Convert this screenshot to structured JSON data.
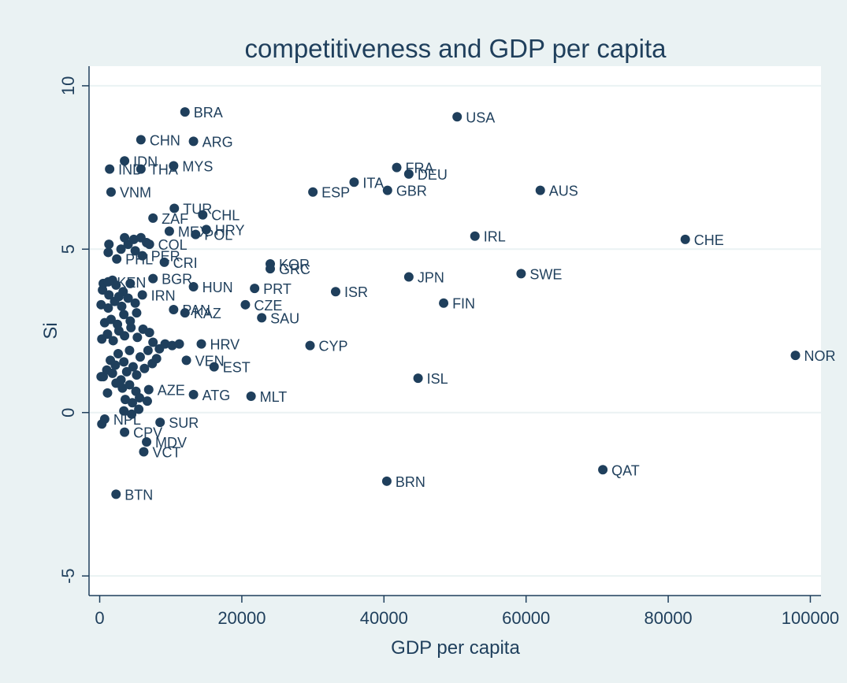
{
  "colors": {
    "background": "#eaf2f3",
    "plot_bg": "#ffffff",
    "marker": "#1f3f5c",
    "text": "#1f3f5c",
    "grid": "#eaf2f3"
  },
  "chart_data": {
    "type": "scatter",
    "title": "competitiveness and GDP per capita",
    "xlabel": "GDP per capita",
    "ylabel": "Si",
    "xlim": [
      -1500,
      101500
    ],
    "ylim": [
      -5.6,
      10.6
    ],
    "xticks": [
      0,
      20000,
      40000,
      60000,
      80000,
      100000
    ],
    "yticks": [
      -5,
      0,
      5,
      10
    ],
    "grid": "horizontal",
    "legend": "none",
    "labeled_points": [
      {
        "label": "BRA",
        "x": 12000,
        "y": 9.2
      },
      {
        "label": "USA",
        "x": 50300,
        "y": 9.05
      },
      {
        "label": "CHN",
        "x": 5800,
        "y": 8.35
      },
      {
        "label": "ARG",
        "x": 13200,
        "y": 8.3
      },
      {
        "label": "IDN",
        "x": 3500,
        "y": 7.7
      },
      {
        "label": "IND",
        "x": 1400,
        "y": 7.45
      },
      {
        "label": "THA",
        "x": 5800,
        "y": 7.45
      },
      {
        "label": "MYS",
        "x": 10400,
        "y": 7.55
      },
      {
        "label": "FRA",
        "x": 41800,
        "y": 7.5
      },
      {
        "label": "DEU",
        "x": 43500,
        "y": 7.3
      },
      {
        "label": "ITA",
        "x": 35800,
        "y": 7.05
      },
      {
        "label": "ESP",
        "x": 30000,
        "y": 6.75
      },
      {
        "label": "GBR",
        "x": 40500,
        "y": 6.8
      },
      {
        "label": "AUS",
        "x": 62000,
        "y": 6.8
      },
      {
        "label": "VNM",
        "x": 1600,
        "y": 6.75
      },
      {
        "label": "TUR",
        "x": 10500,
        "y": 6.25
      },
      {
        "label": "CHL",
        "x": 14500,
        "y": 6.05
      },
      {
        "label": "ZAF",
        "x": 7500,
        "y": 5.95
      },
      {
        "label": "MEX",
        "x": 9800,
        "y": 5.55
      },
      {
        "label": "HRY",
        "x": 15000,
        "y": 5.6
      },
      {
        "label": "POL",
        "x": 13500,
        "y": 5.45
      },
      {
        "label": "IRL",
        "x": 52800,
        "y": 5.4
      },
      {
        "label": "CHE",
        "x": 82400,
        "y": 5.3
      },
      {
        "label": "COL",
        "x": 7000,
        "y": 5.15
      },
      {
        "label": "PER",
        "x": 6000,
        "y": 4.8
      },
      {
        "label": "PHL",
        "x": 2400,
        "y": 4.7
      },
      {
        "label": "CRI",
        "x": 9100,
        "y": 4.6
      },
      {
        "label": "KOR",
        "x": 24000,
        "y": 4.55
      },
      {
        "label": "GRC",
        "x": 24000,
        "y": 4.4
      },
      {
        "label": "SWE",
        "x": 59300,
        "y": 4.25
      },
      {
        "label": "JPN",
        "x": 43500,
        "y": 4.15
      },
      {
        "label": "BGR",
        "x": 7500,
        "y": 4.1
      },
      {
        "label": "KEN",
        "x": 1200,
        "y": 4.0
      },
      {
        "label": "HUN",
        "x": 13200,
        "y": 3.85
      },
      {
        "label": "PRT",
        "x": 21800,
        "y": 3.8
      },
      {
        "label": "IRN",
        "x": 6000,
        "y": 3.6
      },
      {
        "label": "ISR",
        "x": 33200,
        "y": 3.7
      },
      {
        "label": "FIN",
        "x": 48400,
        "y": 3.35
      },
      {
        "label": "CZE",
        "x": 20500,
        "y": 3.3
      },
      {
        "label": "PAN",
        "x": 10400,
        "y": 3.15
      },
      {
        "label": "KAZ",
        "x": 12000,
        "y": 3.05
      },
      {
        "label": "SAU",
        "x": 22800,
        "y": 2.9
      },
      {
        "label": "HRV",
        "x": 14300,
        "y": 2.1
      },
      {
        "label": "CYP",
        "x": 29600,
        "y": 2.05
      },
      {
        "label": "NOR",
        "x": 97900,
        "y": 1.75
      },
      {
        "label": "VEN",
        "x": 12200,
        "y": 1.6
      },
      {
        "label": "EST",
        "x": 16100,
        "y": 1.4
      },
      {
        "label": "ISL",
        "x": 44800,
        "y": 1.05
      },
      {
        "label": "AZE",
        "x": 6900,
        "y": 0.7
      },
      {
        "label": "ATG",
        "x": 13200,
        "y": 0.55
      },
      {
        "label": "MLT",
        "x": 21300,
        "y": 0.5
      },
      {
        "label": "SUR",
        "x": 8500,
        "y": -0.3
      },
      {
        "label": "CPV",
        "x": 3500,
        "y": -0.6
      },
      {
        "label": "MDV",
        "x": 6600,
        "y": -0.9
      },
      {
        "label": "VCT",
        "x": 6200,
        "y": -1.2
      },
      {
        "label": "QAT",
        "x": 70800,
        "y": -1.75
      },
      {
        "label": "BRN",
        "x": 40400,
        "y": -2.1
      },
      {
        "label": "BTN",
        "x": 2300,
        "y": -2.5
      }
    ],
    "cluster_points": [
      {
        "label": "NPL",
        "x": 700,
        "y": -0.2
      },
      {
        "label": "",
        "x": 300,
        "y": -0.35
      },
      {
        "label": "",
        "x": 500,
        "y": 1.1
      },
      {
        "label": "",
        "x": 200,
        "y": 1.1
      },
      {
        "label": "",
        "x": 1000,
        "y": 1.3
      },
      {
        "label": "",
        "x": 1500,
        "y": 1.6
      },
      {
        "label": "",
        "x": 1800,
        "y": 1.2
      },
      {
        "label": "",
        "x": 2200,
        "y": 1.45
      },
      {
        "label": "",
        "x": 2600,
        "y": 1.8
      },
      {
        "label": "",
        "x": 3000,
        "y": 1.0
      },
      {
        "label": "",
        "x": 3400,
        "y": 1.55
      },
      {
        "label": "",
        "x": 3800,
        "y": 1.25
      },
      {
        "label": "",
        "x": 4200,
        "y": 1.9
      },
      {
        "label": "",
        "x": 4700,
        "y": 1.4
      },
      {
        "label": "",
        "x": 5200,
        "y": 1.15
      },
      {
        "label": "",
        "x": 5700,
        "y": 1.7
      },
      {
        "label": "",
        "x": 6300,
        "y": 1.35
      },
      {
        "label": "",
        "x": 6800,
        "y": 1.9
      },
      {
        "label": "",
        "x": 7400,
        "y": 1.5
      },
      {
        "label": "",
        "x": 8000,
        "y": 1.65
      },
      {
        "label": "",
        "x": 9200,
        "y": 2.1
      },
      {
        "label": "",
        "x": 10200,
        "y": 2.05
      },
      {
        "label": "",
        "x": 11200,
        "y": 2.1
      },
      {
        "label": "",
        "x": 300,
        "y": 2.25
      },
      {
        "label": "",
        "x": 1100,
        "y": 2.4
      },
      {
        "label": "",
        "x": 1900,
        "y": 2.2
      },
      {
        "label": "",
        "x": 2700,
        "y": 2.5
      },
      {
        "label": "",
        "x": 3500,
        "y": 2.35
      },
      {
        "label": "",
        "x": 4400,
        "y": 2.6
      },
      {
        "label": "",
        "x": 5300,
        "y": 2.3
      },
      {
        "label": "",
        "x": 6100,
        "y": 2.55
      },
      {
        "label": "",
        "x": 7000,
        "y": 2.45
      },
      {
        "label": "",
        "x": 700,
        "y": 2.75
      },
      {
        "label": "",
        "x": 1600,
        "y": 2.85
      },
      {
        "label": "",
        "x": 2500,
        "y": 2.7
      },
      {
        "label": "",
        "x": 3400,
        "y": 3.0
      },
      {
        "label": "",
        "x": 4300,
        "y": 2.8
      },
      {
        "label": "",
        "x": 5200,
        "y": 3.05
      },
      {
        "label": "",
        "x": 200,
        "y": 3.3
      },
      {
        "label": "",
        "x": 1200,
        "y": 3.2
      },
      {
        "label": "",
        "x": 2100,
        "y": 3.4
      },
      {
        "label": "",
        "x": 3100,
        "y": 3.25
      },
      {
        "label": "",
        "x": 4000,
        "y": 3.5
      },
      {
        "label": "",
        "x": 5000,
        "y": 3.35
      },
      {
        "label": "",
        "x": 400,
        "y": 3.75
      },
      {
        "label": "",
        "x": 1300,
        "y": 3.6
      },
      {
        "label": "",
        "x": 2300,
        "y": 3.9
      },
      {
        "label": "",
        "x": 3300,
        "y": 3.7
      },
      {
        "label": "",
        "x": 4300,
        "y": 3.95
      },
      {
        "label": "",
        "x": 500,
        "y": 3.95
      },
      {
        "label": "",
        "x": 1200,
        "y": 4.9
      },
      {
        "label": "",
        "x": 3000,
        "y": 5.0
      },
      {
        "label": "",
        "x": 4000,
        "y": 5.15
      },
      {
        "label": "",
        "x": 5000,
        "y": 4.95
      },
      {
        "label": "",
        "x": 3500,
        "y": 5.35
      },
      {
        "label": "",
        "x": 4800,
        "y": 5.3
      },
      {
        "label": "",
        "x": 5800,
        "y": 5.35
      },
      {
        "label": "",
        "x": 6600,
        "y": 5.2
      },
      {
        "label": "",
        "x": 1300,
        "y": 5.15
      },
      {
        "label": "",
        "x": 1100,
        "y": 0.6
      },
      {
        "label": "",
        "x": 2300,
        "y": 0.9
      },
      {
        "label": "",
        "x": 3200,
        "y": 0.75
      },
      {
        "label": "",
        "x": 4200,
        "y": 0.85
      },
      {
        "label": "",
        "x": 5100,
        "y": 0.65
      },
      {
        "label": "",
        "x": 3600,
        "y": 0.4
      },
      {
        "label": "",
        "x": 4600,
        "y": 0.3
      },
      {
        "label": "",
        "x": 5600,
        "y": 0.45
      },
      {
        "label": "",
        "x": 6700,
        "y": 0.35
      },
      {
        "label": "",
        "x": 3400,
        "y": 0.05
      },
      {
        "label": "",
        "x": 4500,
        "y": -0.05
      },
      {
        "label": "",
        "x": 5500,
        "y": 0.1
      },
      {
        "label": "",
        "x": 7500,
        "y": 2.15
      },
      {
        "label": "",
        "x": 8400,
        "y": 1.95
      },
      {
        "label": "",
        "x": 2700,
        "y": 3.55
      },
      {
        "label": "",
        "x": 1800,
        "y": 4.05
      }
    ]
  }
}
